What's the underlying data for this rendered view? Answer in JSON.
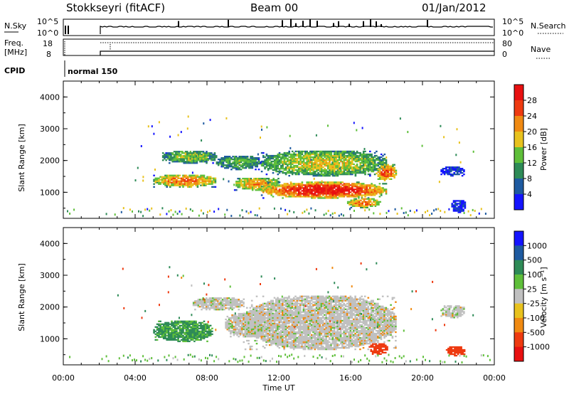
{
  "header": {
    "title": "Stokkseyri (fitACF)",
    "beam": "Beam 00",
    "date": "01/Jan/2012"
  },
  "nsky_panel": {
    "left_label": "N.Sky",
    "right_label": "N.Search",
    "left_ticks": [
      "10^5",
      "10^0"
    ],
    "right_ticks": [
      "10^5",
      "10^0"
    ]
  },
  "freq_panel": {
    "left_label_1": "Freq.",
    "left_label_2": "[MHz]",
    "right_label": "Nave",
    "left_ticks": [
      "18",
      "8"
    ],
    "right_ticks": [
      "80",
      "0"
    ]
  },
  "cpid_panel": {
    "label": "CPID",
    "mode": "normal 150"
  },
  "time_axis": {
    "label": "Time UT",
    "ticks": [
      "00:00",
      "04:00",
      "08:00",
      "12:00",
      "16:00",
      "20:00",
      "00:00"
    ]
  },
  "colors": {
    "power": [
      "#1414ff",
      "#1e5aa0",
      "#2e8b57",
      "#5fbf3a",
      "#e8c21e",
      "#f08a12",
      "#ee3a10",
      "#e81010"
    ],
    "velocity": [
      "#e81010",
      "#ee3a10",
      "#f08a12",
      "#e8c21e",
      "#c0c0c0",
      "#5fbf3a",
      "#2e8b57",
      "#1e5aa0",
      "#1414ff"
    ]
  },
  "chart_data": [
    {
      "type": "heatmap",
      "name_text": "Power",
      "ylabel": "Slant Range [km]",
      "xlabel": "",
      "xlim": [
        0,
        24
      ],
      "ylim": [
        180,
        4500
      ],
      "yticks": [
        "1000",
        "2000",
        "3000",
        "4000"
      ],
      "colorbar": {
        "label": "Power [dB]",
        "ticks": [
          "28",
          "24",
          "20",
          "16",
          "12",
          "8",
          "4"
        ],
        "range": [
          0,
          32
        ]
      },
      "regions": [
        {
          "x": [
            5.0,
            8.5
          ],
          "y": [
            1150,
            1550
          ],
          "value": 22
        },
        {
          "x": [
            5.5,
            8.5
          ],
          "y": [
            1900,
            2300
          ],
          "value": 14
        },
        {
          "x": [
            8.5,
            11.0
          ],
          "y": [
            1700,
            2150
          ],
          "value": 12
        },
        {
          "x": [
            9.5,
            12.0
          ],
          "y": [
            1050,
            1450
          ],
          "value": 20
        },
        {
          "x": [
            11.0,
            18.0
          ],
          "y": [
            800,
            1300
          ],
          "value": 28
        },
        {
          "x": [
            11.0,
            18.0
          ],
          "y": [
            1500,
            2300
          ],
          "value": 16
        },
        {
          "x": [
            15.8,
            17.6
          ],
          "y": [
            500,
            800
          ],
          "value": 22
        },
        {
          "x": [
            17.4,
            18.5
          ],
          "y": [
            1350,
            1850
          ],
          "value": 24
        },
        {
          "x": [
            21.0,
            22.3
          ],
          "y": [
            1500,
            1800
          ],
          "value": 4
        },
        {
          "x": [
            21.6,
            22.4
          ],
          "y": [
            350,
            750
          ],
          "value": 4
        }
      ]
    },
    {
      "type": "heatmap",
      "name_text": "Velocity",
      "ylabel": "Slant Range [km]",
      "xlabel": "Time UT",
      "xlim": [
        0,
        24
      ],
      "ylim": [
        180,
        4500
      ],
      "yticks": [
        "1000",
        "2000",
        "3000",
        "4000"
      ],
      "colorbar": {
        "label": "Velocity [m s⁻¹]",
        "ticks": [
          "1000",
          "500",
          "100",
          "25",
          "-25",
          "-100",
          "-500",
          "-1000"
        ],
        "range": [
          -1000,
          1000
        ]
      },
      "regions": [
        {
          "x": [
            5.0,
            8.3
          ],
          "y": [
            900,
            1550
          ],
          "value": 100
        },
        {
          "x": [
            7.2,
            10.0
          ],
          "y": [
            1900,
            2300
          ],
          "value": 0
        },
        {
          "x": [
            9.0,
            11.5
          ],
          "y": [
            1050,
            1800
          ],
          "value": 0
        },
        {
          "x": [
            10.0,
            18.5
          ],
          "y": [
            650,
            2350
          ],
          "value": 0
        },
        {
          "x": [
            17.0,
            18.0
          ],
          "y": [
            500,
            850
          ],
          "value": -300
        },
        {
          "x": [
            21.0,
            22.3
          ],
          "y": [
            1650,
            2050
          ],
          "value": 0
        },
        {
          "x": [
            21.3,
            22.3
          ],
          "y": [
            450,
            750
          ],
          "value": -300
        }
      ]
    }
  ]
}
